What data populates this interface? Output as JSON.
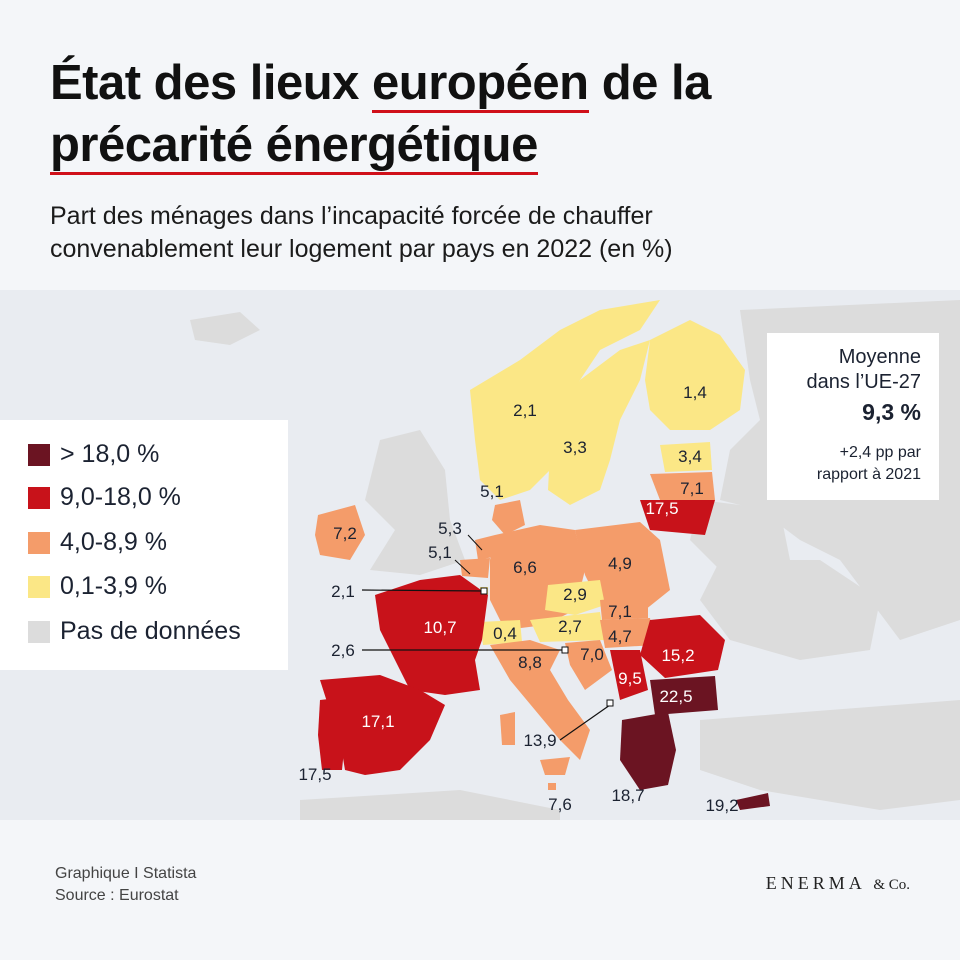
{
  "title": {
    "part1": "État des lieux ",
    "highlight1": "européen",
    "part2": " de la",
    "highlight2": "précarité énergétique"
  },
  "subtitle": {
    "line1": "Part des ménages dans l’incapacité forcée de chauffer",
    "line2": "convenablement leur logement par pays en 2022 (en %)"
  },
  "legend": {
    "items": [
      {
        "label": "> 18,0 %",
        "color": "#6b1422"
      },
      {
        "label": "9,0-18,0 %",
        "color": "#c8121a"
      },
      {
        "label": "4,0-8,9 %",
        "color": "#f49c6a"
      },
      {
        "label": "0,1-3,9 %",
        "color": "#fbe786"
      },
      {
        "label": "Pas de données",
        "color": "#dcdcdc"
      }
    ]
  },
  "average": {
    "line1": "Moyenne",
    "line2": "dans l’UE-27",
    "value": "9,3 %",
    "note1": "+2,4 pp par",
    "note2": "rapport à 2021"
  },
  "map_labels": {
    "norway": "2,1",
    "finland": "1,4",
    "sweden": "3,3",
    "estonia": "3,4",
    "latvia": "7,1",
    "lithuania": "17,5",
    "denmark": "5,1",
    "ireland": "7,2",
    "netherlands": "5,3",
    "belgium": "5,1",
    "luxembourg": "2,1",
    "germany": "6,6",
    "poland": "4,9",
    "czechia": "2,9",
    "slovakia": "7,1",
    "austria": "2,7",
    "hungary": "4,7",
    "slovenia": "7,0",
    "switzerland": "0,4",
    "croatia_callout": "2,6",
    "france": "10,7",
    "italy": "8,8",
    "romania": "15,2",
    "serbia": "9,5",
    "bulgaria": "22,5",
    "spain": "17,1",
    "portugal": "17,5",
    "malta": "7,6",
    "albania": "13,9",
    "greece": "18,7",
    "cyprus": "19,2"
  },
  "footer": {
    "line1": "Graphique I Statista",
    "line2": "Source : Eurostat"
  },
  "brand": {
    "name": "ENERMA",
    "suffix": "& Co."
  },
  "colors": {
    "high": "#6b1422",
    "mid_high": "#c8121a",
    "mid": "#f49c6a",
    "low": "#fbe786",
    "nodata": "#dcdcdc",
    "accent": "#d0101a"
  }
}
